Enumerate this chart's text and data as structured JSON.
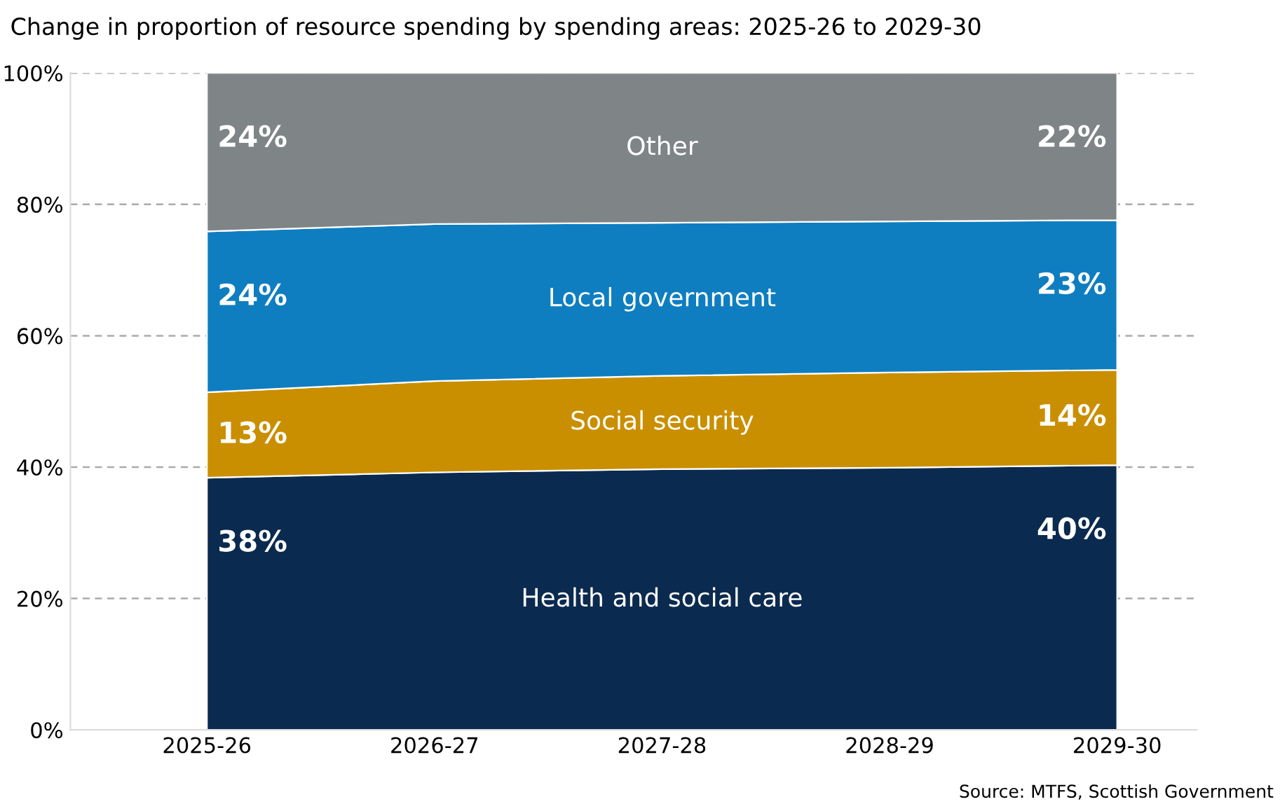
{
  "chart_data": {
    "type": "area",
    "stacked": true,
    "title": "Change in proportion of resource spending by spending areas: 2025-26 to 2029-30",
    "categories": [
      "2025-26",
      "2026-27",
      "2027-28",
      "2028-29",
      "2029-30"
    ],
    "series": [
      {
        "name": "Health and social care",
        "color": "#0b2a4f",
        "values": [
          38.4,
          39.2,
          39.7,
          39.9,
          40.3
        ],
        "value_labels": [
          "38%",
          null,
          null,
          null,
          "40%"
        ]
      },
      {
        "name": "Social security",
        "color": "#c98f00",
        "values": [
          13.0,
          13.9,
          14.2,
          14.5,
          14.5
        ],
        "value_labels": [
          "13%",
          null,
          null,
          null,
          "14%"
        ]
      },
      {
        "name": "Local government",
        "color": "#0e7ec0",
        "values": [
          24.5,
          23.9,
          23.3,
          23.0,
          22.8
        ],
        "value_labels": [
          "24%",
          null,
          null,
          null,
          "23%"
        ]
      },
      {
        "name": "Other",
        "color": "#7f8487",
        "values": [
          24.1,
          23.0,
          22.8,
          22.6,
          22.4
        ],
        "value_labels": [
          "24%",
          null,
          null,
          null,
          "22%"
        ]
      }
    ],
    "ylim": [
      0,
      100
    ],
    "yticks": [
      {
        "value": 0,
        "label": "0%"
      },
      {
        "value": 20,
        "label": "20%"
      },
      {
        "value": 40,
        "label": "40%"
      },
      {
        "value": 60,
        "label": "60%"
      },
      {
        "value": 80,
        "label": "80%"
      },
      {
        "value": 100,
        "label": "100%"
      }
    ],
    "grid": "y",
    "legend": false,
    "annotations": [
      "Source: MTFS, Scottish Government"
    ]
  }
}
